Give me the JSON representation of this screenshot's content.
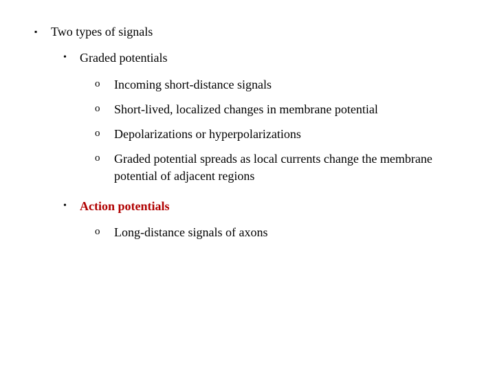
{
  "colors": {
    "text": "#000000",
    "accent": "#b00000",
    "background": "#ffffff"
  },
  "typography": {
    "family": "Garamond / serif",
    "body_size_pt": 14,
    "bold_items": [
      "Action potentials"
    ]
  },
  "bullets": {
    "level1": "▪",
    "level2": "•",
    "level3": "o"
  },
  "outline": {
    "l1": {
      "text": "Two types of signals",
      "children": [
        {
          "text": "Graded potentials",
          "bold": false,
          "color": "#000000",
          "children": [
            {
              "text": "Incoming short-distance signals"
            },
            {
              "text": "Short-lived, localized changes in membrane potential"
            },
            {
              "text": "Depolarizations or hyperpolarizations"
            },
            {
              "text": "Graded potential spreads as local currents change the membrane potential of adjacent regions"
            }
          ]
        },
        {
          "text": "Action potentials",
          "bold": true,
          "color": "#b00000",
          "children": [
            {
              "text": "Long-distance signals of axons"
            }
          ]
        }
      ]
    }
  }
}
